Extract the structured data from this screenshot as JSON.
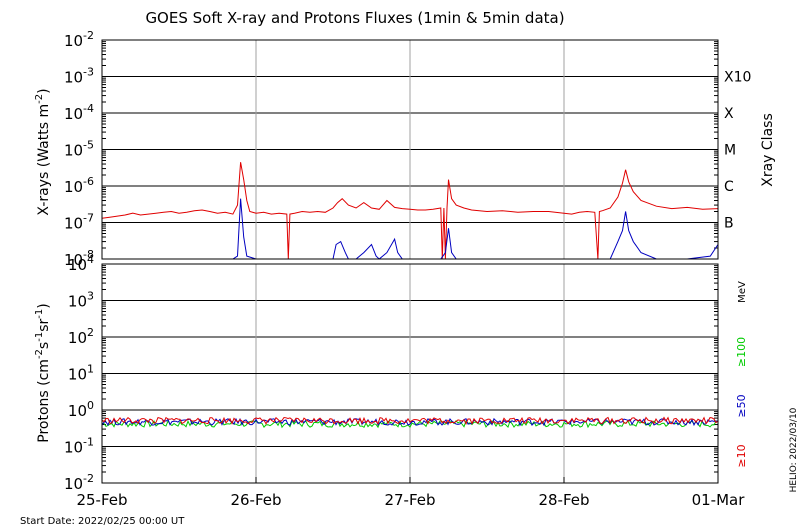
{
  "title": "GOES Soft X-ray and Protons Fluxes   (1min & 5min data)",
  "start_date": "Start Date: 2022/02/25 00:00 UT",
  "credit": "HELIO: 2022/03/10",
  "colors": {
    "xray_long": "#e00000",
    "xray_short": "#0000c0",
    "p10": "#e00000",
    "p50": "#0000c0",
    "p100": "#00cc00",
    "grid_vertical": "#a0a0a0"
  },
  "chart_data": [
    {
      "type": "line",
      "panel": "xrays",
      "scale": "log",
      "ylabel_main": "X-rays (Watts m",
      "ylabel_exp": "-2",
      "ylabel_close": ")",
      "ylim": [
        1e-08,
        0.01
      ],
      "y_ticks": [
        {
          "base": "10",
          "exp": "-2"
        },
        {
          "base": "10",
          "exp": "-3"
        },
        {
          "base": "10",
          "exp": "-4"
        },
        {
          "base": "10",
          "exp": "-5"
        },
        {
          "base": "10",
          "exp": "-6"
        },
        {
          "base": "10",
          "exp": "-7"
        },
        {
          "base": "10",
          "exp": "-8"
        }
      ],
      "class_axis_label": "Xray Class",
      "classes": [
        "X10",
        "X",
        "M",
        "C",
        "B"
      ],
      "x_range_days": [
        0,
        4
      ],
      "series": [
        {
          "key": "long",
          "x": [
            0,
            0.05,
            0.1,
            0.15,
            0.2,
            0.25,
            0.3,
            0.35,
            0.4,
            0.45,
            0.5,
            0.55,
            0.6,
            0.65,
            0.7,
            0.75,
            0.8,
            0.85,
            0.88,
            0.9,
            0.92,
            0.94,
            0.96,
            1.0,
            1.05,
            1.1,
            1.15,
            1.2,
            1.21,
            1.22,
            1.25,
            1.3,
            1.35,
            1.4,
            1.45,
            1.5,
            1.53,
            1.56,
            1.6,
            1.65,
            1.7,
            1.75,
            1.8,
            1.85,
            1.9,
            1.95,
            2.0,
            2.05,
            2.1,
            2.15,
            2.2,
            2.21,
            2.22,
            2.23,
            2.24,
            2.25,
            2.27,
            2.3,
            2.35,
            2.4,
            2.5,
            2.6,
            2.7,
            2.8,
            2.9,
            3.0,
            3.05,
            3.1,
            3.15,
            3.2,
            3.22,
            3.23,
            3.25,
            3.3,
            3.35,
            3.38,
            3.4,
            3.42,
            3.45,
            3.5,
            3.6,
            3.7,
            3.8,
            3.9,
            4.0
          ],
          "y": [
            1.3e-07,
            1.4e-07,
            1.5e-07,
            1.6e-07,
            1.8e-07,
            1.6e-07,
            1.7e-07,
            1.8e-07,
            1.9e-07,
            2e-07,
            1.8e-07,
            1.9e-07,
            2.1e-07,
            2.2e-07,
            2e-07,
            1.8e-07,
            1.9e-07,
            1.7e-07,
            3e-07,
            4.5e-06,
            1.5e-06,
            4e-07,
            2e-07,
            1.8e-07,
            1.9e-07,
            1.7e-07,
            1.8e-07,
            1.7e-07,
            1e-08,
            1.7e-07,
            1.8e-07,
            2e-07,
            1.9e-07,
            2e-07,
            1.9e-07,
            2.5e-07,
            3.5e-07,
            4.5e-07,
            3e-07,
            2.5e-07,
            3.5e-07,
            2.5e-07,
            2.3e-07,
            4e-07,
            2.6e-07,
            2.4e-07,
            2.3e-07,
            2.2e-07,
            2.2e-07,
            2.3e-07,
            2.5e-07,
            1e-08,
            2.5e-07,
            1e-08,
            2.5e-07,
            1.5e-06,
            4.5e-07,
            3e-07,
            2.5e-07,
            2.2e-07,
            2e-07,
            2.1e-07,
            1.9e-07,
            2e-07,
            2e-07,
            1.8e-07,
            1.7e-07,
            1.9e-07,
            2e-07,
            1.9e-07,
            1e-08,
            2e-07,
            2.1e-07,
            2.5e-07,
            5e-07,
            1.2e-06,
            2.8e-06,
            1.3e-06,
            7e-07,
            4e-07,
            2.8e-07,
            2.4e-07,
            2.6e-07,
            2.3e-07,
            2.4e-07
          ]
        },
        {
          "key": "short",
          "x": [
            0,
            0.5,
            0.85,
            0.88,
            0.9,
            0.92,
            0.94,
            1.0,
            1.5,
            1.52,
            1.55,
            1.58,
            1.6,
            1.65,
            1.7,
            1.75,
            1.78,
            1.8,
            1.85,
            1.9,
            1.92,
            1.95,
            2.0,
            2.2,
            2.23,
            2.25,
            2.27,
            2.3,
            2.5,
            3.0,
            3.3,
            3.35,
            3.38,
            3.4,
            3.42,
            3.45,
            3.5,
            3.6,
            3.8,
            3.95,
            4.0
          ],
          "y": [
            1e-08,
            1e-08,
            1e-08,
            1.2e-08,
            4.5e-07,
            4e-08,
            1.2e-08,
            1e-08,
            1e-08,
            2.5e-08,
            3e-08,
            1.5e-08,
            1e-08,
            1e-08,
            1.5e-08,
            2.5e-08,
            1.2e-08,
            1e-08,
            1.5e-08,
            3.5e-08,
            1.5e-08,
            1e-08,
            1e-08,
            1e-08,
            1.5e-08,
            7e-08,
            1.5e-08,
            1e-08,
            1e-08,
            1e-08,
            1e-08,
            3e-08,
            6e-08,
            2e-07,
            6e-08,
            3e-08,
            1.5e-08,
            1e-08,
            1e-08,
            1.2e-08,
            2.5e-08
          ]
        }
      ]
    },
    {
      "type": "line",
      "panel": "protons",
      "scale": "log",
      "ylabel_main": "Protons (cm",
      "ylabel_exp1": "-2",
      "ylabel_mid1": "s",
      "ylabel_exp2": "-1",
      "ylabel_mid2": "sr",
      "ylabel_exp3": "-1",
      "ylabel_close": ")",
      "ylim": [
        0.01,
        10000.0
      ],
      "y_ticks": [
        {
          "base": "10",
          "exp": "4"
        },
        {
          "base": "10",
          "exp": "3"
        },
        {
          "base": "10",
          "exp": "2"
        },
        {
          "base": "10",
          "exp": "1"
        },
        {
          "base": "10",
          "exp": "0"
        },
        {
          "base": "10",
          "exp": "-1"
        },
        {
          "base": "10",
          "exp": "-2"
        }
      ],
      "threshold": 10,
      "energy_unit": "MeV",
      "series": [
        {
          "name": "≥100",
          "key": "p100",
          "level": 0.42
        },
        {
          "name": "≥50",
          "key": "p50",
          "level": 0.48
        },
        {
          "name": "≥10",
          "key": "p10",
          "level": 0.52
        }
      ]
    }
  ],
  "x_axis": {
    "tick_labels": [
      "25-Feb",
      "26-Feb",
      "27-Feb",
      "28-Feb",
      "01-Mar"
    ]
  }
}
